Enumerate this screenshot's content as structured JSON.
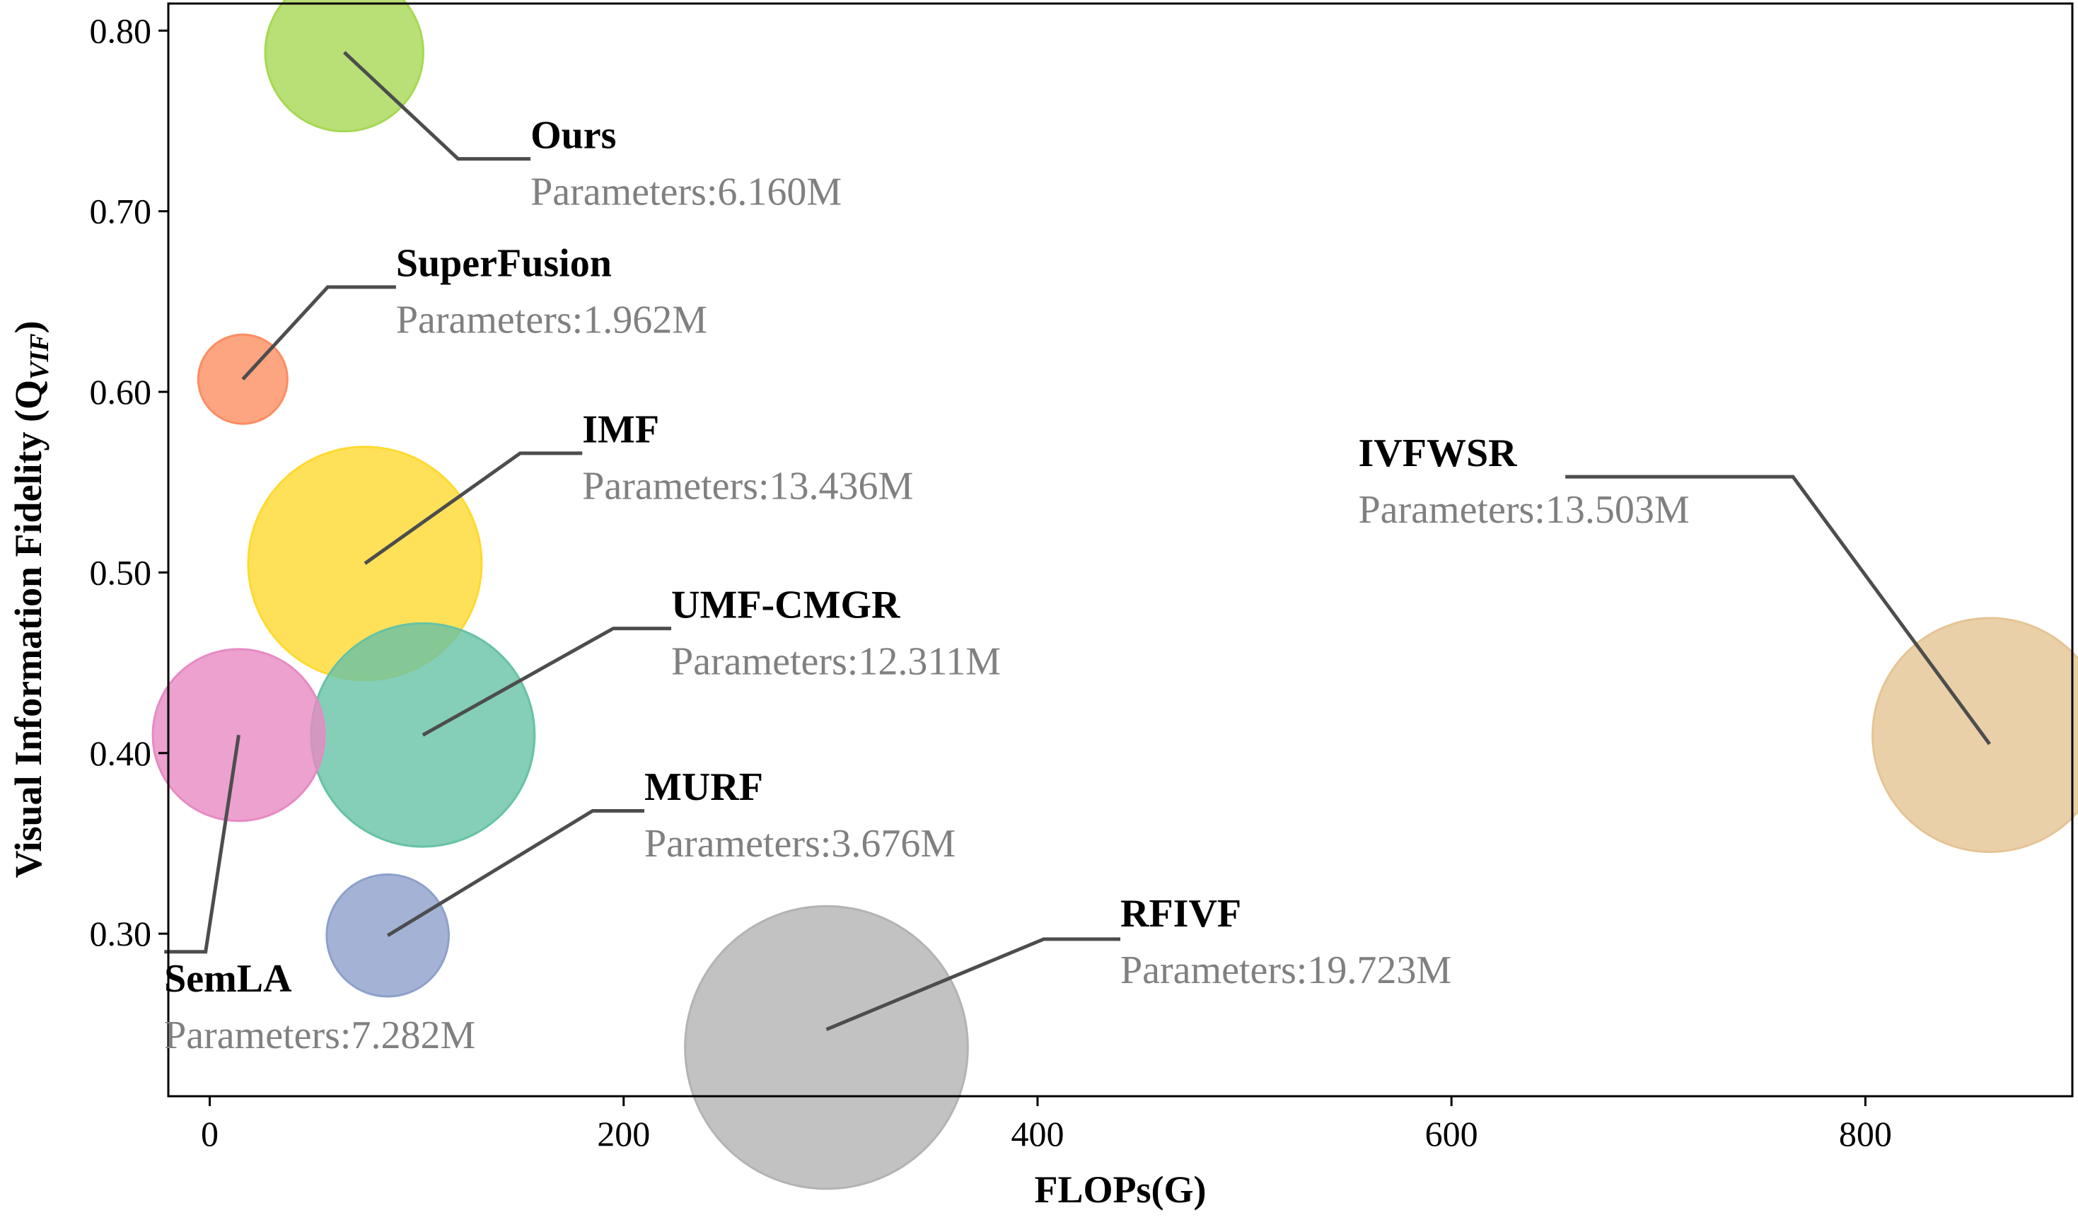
{
  "chart_data": {
    "type": "scatter",
    "xlabel": "FLOPs(G)",
    "ylabel": "Visual Information Fidelity (Q",
    "ylabel_sub": "VIF",
    "ylabel_end": ")",
    "xlim": [
      -20,
      900
    ],
    "ylim": [
      0.21,
      0.815
    ],
    "x_ticks": [
      0,
      200,
      400,
      600,
      800
    ],
    "x_tick_labels": [
      "0",
      "200",
      "400",
      "600",
      "800"
    ],
    "y_ticks": [
      0.3,
      0.4,
      0.5,
      0.6,
      0.7,
      0.8
    ],
    "y_tick_labels": [
      "0.30",
      "0.40",
      "0.50",
      "0.60",
      "0.70",
      "0.80"
    ],
    "points": [
      {
        "name": "Ours",
        "params_label": "Parameters:6.160M",
        "params": 6.16,
        "x": 65,
        "y": 0.788,
        "color": "#a6d854",
        "label_pos": [
          155,
          0.735
        ],
        "leader": [
          [
            65,
            0.788
          ],
          [
            120,
            0.729
          ],
          [
            155,
            0.729
          ]
        ]
      },
      {
        "name": "SuperFusion",
        "params_label": "Parameters:1.962M",
        "params": 1.962,
        "x": 16,
        "y": 0.607,
        "color": "#fc8d62",
        "label_pos": [
          90,
          0.664
        ],
        "leader": [
          [
            16,
            0.607
          ],
          [
            57,
            0.658
          ],
          [
            90,
            0.658
          ]
        ]
      },
      {
        "name": "IMF",
        "params_label": "Parameters:13.436M",
        "params": 13.436,
        "x": 75,
        "y": 0.505,
        "color": "#ffd92f",
        "label_pos": [
          180,
          0.572
        ],
        "leader": [
          [
            75,
            0.505
          ],
          [
            150,
            0.566
          ],
          [
            180,
            0.566
          ]
        ]
      },
      {
        "name": "UMF-CMGR",
        "params_label": "Parameters:12.311M",
        "params": 12.311,
        "x": 103,
        "y": 0.41,
        "color": "#66c2a5",
        "label_pos": [
          223,
          0.475
        ],
        "leader": [
          [
            103,
            0.41
          ],
          [
            195,
            0.469
          ],
          [
            223,
            0.469
          ]
        ]
      },
      {
        "name": "SemLA",
        "params_label": "Parameters:7.282M",
        "params": 7.282,
        "x": 14,
        "y": 0.41,
        "color": "#e78ac3",
        "label_pos": [
          -22,
          0.268
        ],
        "leader": [
          [
            14,
            0.41
          ],
          [
            -2,
            0.29
          ],
          [
            -22,
            0.29
          ]
        ]
      },
      {
        "name": "MURF",
        "params_label": "Parameters:3.676M",
        "params": 3.676,
        "x": 86,
        "y": 0.299,
        "color": "#8da0cb",
        "label_pos": [
          210,
          0.374
        ],
        "leader": [
          [
            86,
            0.299
          ],
          [
            185,
            0.368
          ],
          [
            210,
            0.368
          ]
        ]
      },
      {
        "name": "RFIVF",
        "params_label": "Parameters:19.723M",
        "params": 19.723,
        "x": 298,
        "y": 0.237,
        "color": "#b3b3b3",
        "label_pos": [
          440,
          0.304
        ],
        "leader": [
          [
            298,
            0.247
          ],
          [
            403,
            0.297
          ],
          [
            440,
            0.297
          ]
        ]
      },
      {
        "name": "IVFWSR",
        "params_label": "Parameters:13.503M",
        "params": 13.503,
        "x": 860,
        "y": 0.41,
        "color": "#e5c494",
        "label_pos": [
          555,
          0.559
        ],
        "leader": [
          [
            860,
            0.405
          ],
          [
            765,
            0.553
          ],
          [
            655,
            0.553
          ]
        ]
      }
    ],
    "grid": false,
    "legend": "none"
  }
}
